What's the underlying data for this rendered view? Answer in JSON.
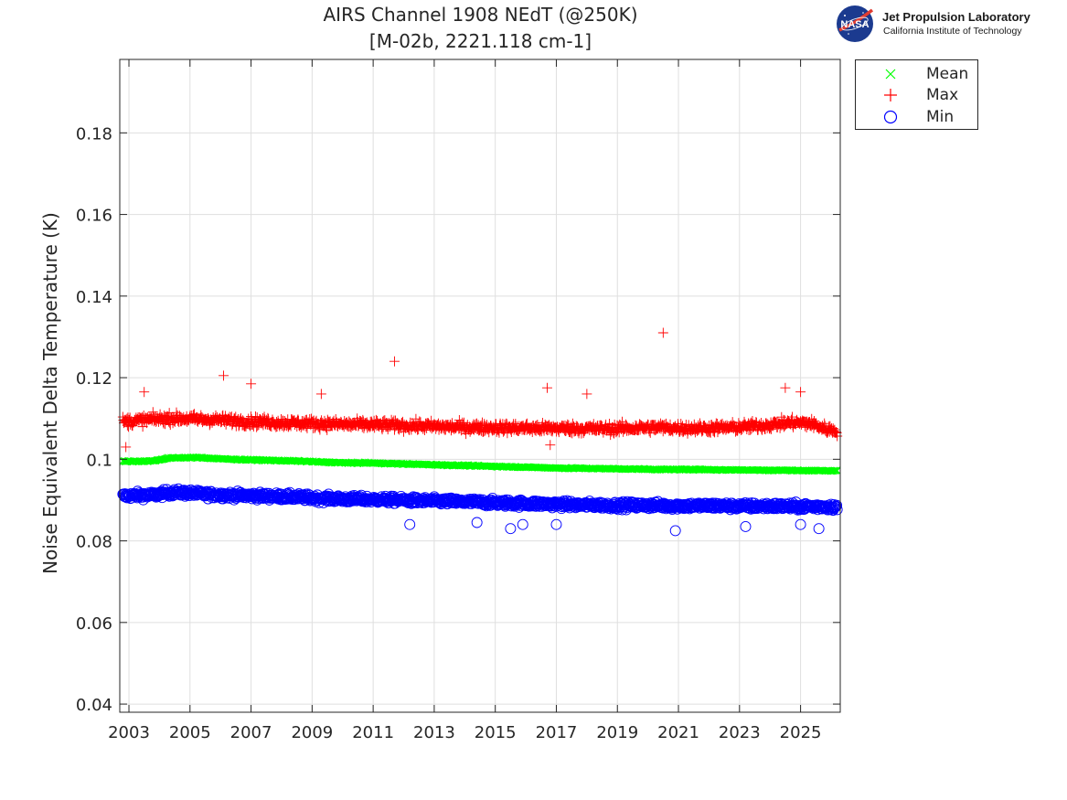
{
  "header": {
    "title_line1": "AIRS Channel 1908 NEdT (@250K)",
    "title_line2": "[M-02b, 2221.118 cm-1]"
  },
  "logo": {
    "name": "Jet Propulsion Laboratory",
    "subtitle": "California Institute of Technology",
    "badge": "NASA"
  },
  "colors": {
    "mean": "#00ff00",
    "max": "#ff0000",
    "min": "#0000ff",
    "grid": "#dfdfdf",
    "axis": "#262626"
  },
  "chart_data": {
    "type": "scatter",
    "title": "AIRS Channel 1908 NEdT (@250K)",
    "subtitle": "[M-02b, 2221.118 cm-1]",
    "xlabel": "",
    "ylabel": "Noise Equivalent Delta Temperature (K)",
    "xlim": [
      2002.7,
      2026.3
    ],
    "ylim": [
      0.038,
      0.198
    ],
    "x_ticks": [
      "2003",
      "2005",
      "2007",
      "2009",
      "2011",
      "2013",
      "2015",
      "2017",
      "2019",
      "2021",
      "2023",
      "2025"
    ],
    "y_ticks": [
      "0.04",
      "0.06",
      "0.08",
      "0.1",
      "0.12",
      "0.14",
      "0.16",
      "0.18"
    ],
    "grid": true,
    "legend_position": "outside-top-right",
    "series": [
      {
        "name": "Mean",
        "marker": "x",
        "x": [
          2002.8,
          2003.3,
          2003.8,
          2004.3,
          2004.8,
          2005.3,
          2005.8,
          2006.3,
          2006.8,
          2007.3,
          2007.8,
          2008.3,
          2008.8,
          2009.3,
          2009.8,
          2010.3,
          2010.8,
          2011.3,
          2011.8,
          2012.3,
          2012.8,
          2013.3,
          2013.8,
          2014.3,
          2014.8,
          2015.3,
          2015.8,
          2016.3,
          2016.8,
          2017.3,
          2017.8,
          2018.3,
          2018.8,
          2019.3,
          2019.8,
          2020.3,
          2020.8,
          2021.3,
          2021.8,
          2022.3,
          2022.8,
          2023.3,
          2023.8,
          2024.3,
          2024.8,
          2025.3,
          2025.8,
          2026.2
        ],
        "y": [
          0.0995,
          0.0995,
          0.0996,
          0.1003,
          0.1004,
          0.1004,
          0.1002,
          0.1,
          0.0999,
          0.0998,
          0.0997,
          0.0996,
          0.0995,
          0.0993,
          0.0992,
          0.0991,
          0.0991,
          0.099,
          0.0989,
          0.0988,
          0.0987,
          0.0986,
          0.0985,
          0.0984,
          0.0983,
          0.0982,
          0.0981,
          0.098,
          0.0979,
          0.0978,
          0.0978,
          0.0977,
          0.0977,
          0.0976,
          0.0976,
          0.0975,
          0.0975,
          0.0975,
          0.0975,
          0.0974,
          0.0974,
          0.0974,
          0.0973,
          0.0973,
          0.0973,
          0.0972,
          0.0972,
          0.0972
        ]
      },
      {
        "name": "Max",
        "marker": "+",
        "x": [
          2002.8,
          2003.3,
          2003.8,
          2004.3,
          2004.8,
          2005.3,
          2005.8,
          2006.3,
          2006.8,
          2007.3,
          2007.8,
          2008.3,
          2008.8,
          2009.3,
          2009.8,
          2010.3,
          2010.8,
          2011.3,
          2011.8,
          2012.3,
          2012.8,
          2013.3,
          2013.8,
          2014.3,
          2014.8,
          2015.3,
          2015.8,
          2016.3,
          2016.8,
          2017.3,
          2017.8,
          2018.3,
          2018.8,
          2019.3,
          2019.8,
          2020.3,
          2020.8,
          2021.3,
          2021.8,
          2022.3,
          2022.8,
          2023.3,
          2023.8,
          2024.3,
          2024.8,
          2025.3,
          2025.8,
          2026.2
        ],
        "y": [
          0.1092,
          0.1095,
          0.1098,
          0.11,
          0.11,
          0.1098,
          0.1097,
          0.1095,
          0.1093,
          0.1092,
          0.109,
          0.1089,
          0.1088,
          0.1087,
          0.1086,
          0.1085,
          0.1085,
          0.1084,
          0.1083,
          0.1082,
          0.1081,
          0.108,
          0.1079,
          0.1078,
          0.1078,
          0.1077,
          0.1077,
          0.1076,
          0.1076,
          0.1076,
          0.1075,
          0.1075,
          0.1075,
          0.1076,
          0.1077,
          0.1078,
          0.1077,
          0.1076,
          0.1076,
          0.1077,
          0.1078,
          0.108,
          0.1083,
          0.1087,
          0.109,
          0.1088,
          0.1075,
          0.107
        ],
        "outliers": [
          [
            2003.5,
            0.1165
          ],
          [
            2006.1,
            0.1205
          ],
          [
            2007.0,
            0.1185
          ],
          [
            2009.3,
            0.116
          ],
          [
            2011.7,
            0.124
          ],
          [
            2016.7,
            0.1175
          ],
          [
            2018.0,
            0.116
          ],
          [
            2020.5,
            0.131
          ],
          [
            2024.5,
            0.1175
          ],
          [
            2025.0,
            0.1165
          ],
          [
            2002.9,
            0.103
          ],
          [
            2016.8,
            0.1035
          ]
        ]
      },
      {
        "name": "Min",
        "marker": "o",
        "x": [
          2002.8,
          2003.3,
          2003.8,
          2004.3,
          2004.8,
          2005.3,
          2005.8,
          2006.3,
          2006.8,
          2007.3,
          2007.8,
          2008.3,
          2008.8,
          2009.3,
          2009.8,
          2010.3,
          2010.8,
          2011.3,
          2011.8,
          2012.3,
          2012.8,
          2013.3,
          2013.8,
          2014.3,
          2014.8,
          2015.3,
          2015.8,
          2016.3,
          2016.8,
          2017.3,
          2017.8,
          2018.3,
          2018.8,
          2019.3,
          2019.8,
          2020.3,
          2020.8,
          2021.3,
          2021.8,
          2022.3,
          2022.8,
          2023.3,
          2023.8,
          2024.3,
          2024.8,
          2025.3,
          2025.8,
          2026.2
        ],
        "y": [
          0.091,
          0.0912,
          0.0912,
          0.0918,
          0.0918,
          0.0915,
          0.0913,
          0.0912,
          0.0911,
          0.091,
          0.0909,
          0.0908,
          0.0906,
          0.0904,
          0.0903,
          0.0902,
          0.0902,
          0.0901,
          0.09,
          0.0899,
          0.0898,
          0.0897,
          0.0896,
          0.0895,
          0.0894,
          0.0893,
          0.0892,
          0.0891,
          0.089,
          0.0889,
          0.0888,
          0.0888,
          0.0887,
          0.0887,
          0.0887,
          0.0887,
          0.0886,
          0.0886,
          0.0886,
          0.0886,
          0.0885,
          0.0885,
          0.0885,
          0.0885,
          0.0884,
          0.0884,
          0.0884,
          0.0883
        ],
        "outliers": [
          [
            2012.2,
            0.084
          ],
          [
            2014.4,
            0.0845
          ],
          [
            2015.5,
            0.083
          ],
          [
            2015.9,
            0.084
          ],
          [
            2017.0,
            0.084
          ],
          [
            2020.9,
            0.0825
          ],
          [
            2023.2,
            0.0835
          ],
          [
            2025.0,
            0.084
          ],
          [
            2025.6,
            0.083
          ]
        ]
      }
    ]
  }
}
